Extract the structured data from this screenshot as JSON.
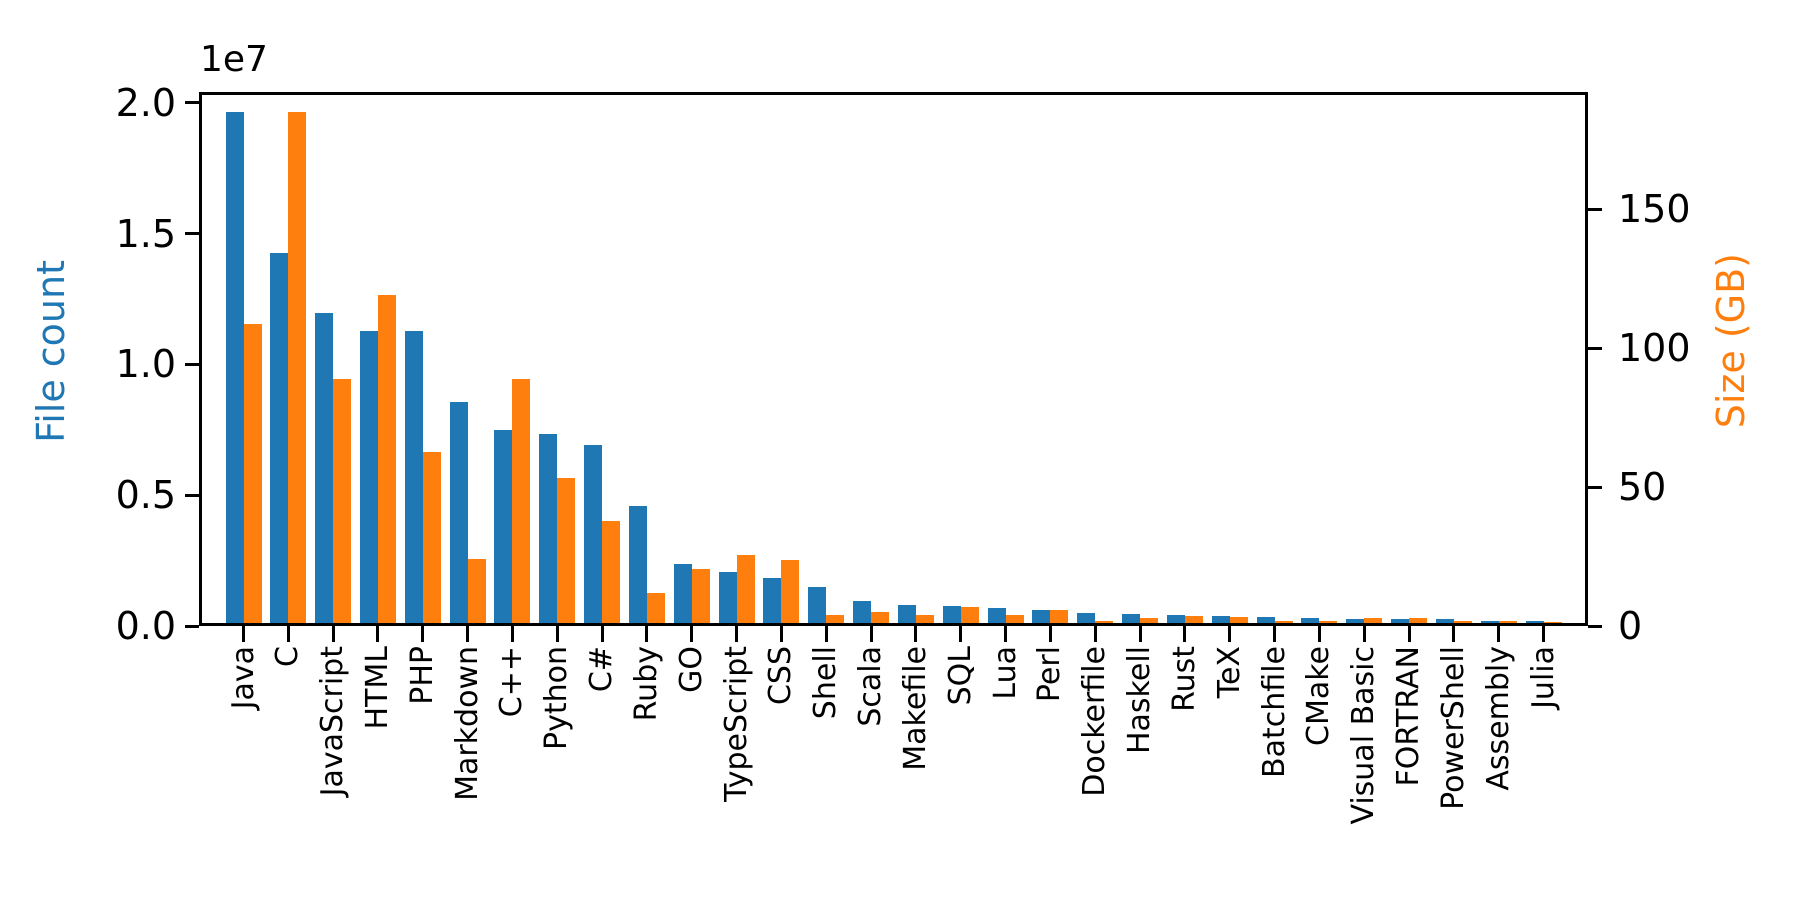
{
  "figure": {
    "background": "#ffffff",
    "spine_color": "#000000"
  },
  "chart_data": {
    "type": "bar",
    "title": "",
    "offset_text": "1e7",
    "ylabel_left": "File count",
    "ylabel_right": "Size (GB)",
    "ylabel_left_color": "#1f77b4",
    "ylabel_right_color": "#ff7f0e",
    "grid": false,
    "legend": "none",
    "categories": [
      "Java",
      "C",
      "JavaScript",
      "HTML",
      "PHP",
      "Markdown",
      "C++",
      "Python",
      "C#",
      "Ruby",
      "GO",
      "TypeScript",
      "CSS",
      "Shell",
      "Scala",
      "Makefile",
      "SQL",
      "Lua",
      "Perl",
      "Dockerfile",
      "Haskell",
      "Rust",
      "TeX",
      "Batchfile",
      "CMake",
      "Visual Basic",
      "FORTRAN",
      "PowerShell",
      "Assembly",
      "Julia"
    ],
    "series": [
      {
        "name": "File count",
        "axis": "left",
        "color": "#1f77b4",
        "values": [
          19548190,
          14143113,
          11839883,
          11178557,
          11177610,
          8464626,
          7380520,
          7226626,
          6811652,
          4473331,
          2265436,
          1940406,
          1734406,
          1385648,
          835755,
          679430,
          656671,
          578554,
          497949,
          366505,
          340623,
          322431,
          251015,
          236945,
          175282,
          155652,
          142038,
          136846,
          82905,
          58317
        ]
      },
      {
        "name": "Size (GB)",
        "axis": "right",
        "color": "#ff7f0e",
        "values": [
          107.7,
          183.83,
          87.82,
          118.12,
          61.41,
          23.09,
          87.73,
          52.03,
          36.83,
          10.95,
          19.28,
          24.59,
          22.67,
          3.01,
          3.87,
          2.92,
          5.67,
          2.81,
          4.7,
          0.71,
          1.85,
          2.68,
          2.15,
          0.7,
          0.54,
          1.91,
          1.62,
          0.69,
          0.78,
          0.29
        ]
      }
    ],
    "ylim_left": [
      0,
      20420000
    ],
    "ylim_right": [
      0,
      192.1
    ],
    "yticks_left": [
      {
        "value": 0,
        "label": "0.0"
      },
      {
        "value": 5000000,
        "label": "0.5"
      },
      {
        "value": 10000000,
        "label": "1.0"
      },
      {
        "value": 15000000,
        "label": "1.5"
      },
      {
        "value": 20000000,
        "label": "2.0"
      }
    ],
    "yticks_right": [
      {
        "value": 0,
        "label": "0"
      },
      {
        "value": 50,
        "label": "50"
      },
      {
        "value": 100,
        "label": "100"
      },
      {
        "value": 150,
        "label": "150"
      }
    ]
  }
}
